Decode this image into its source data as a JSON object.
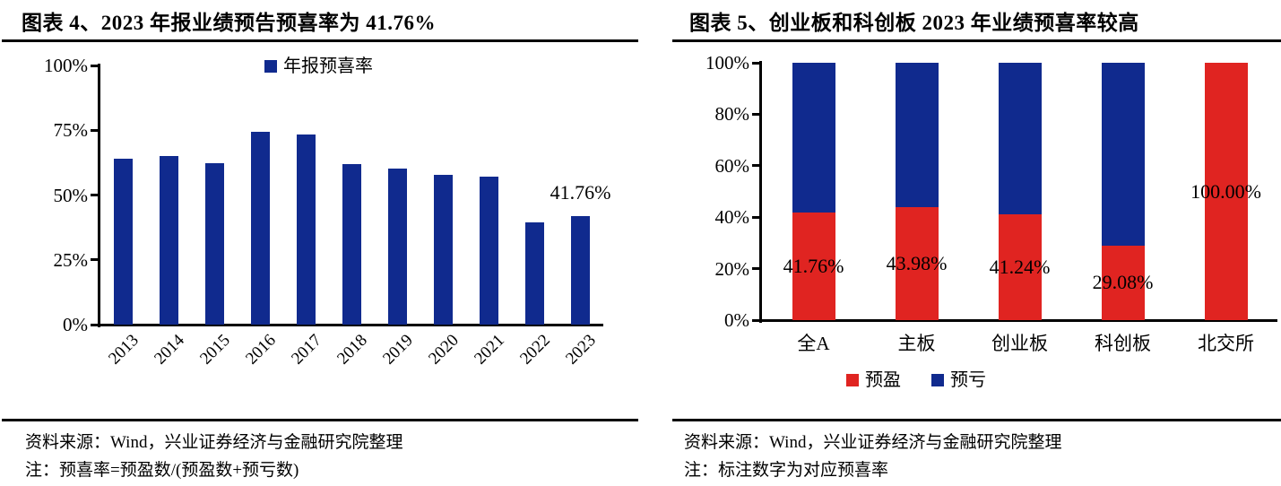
{
  "figure4": {
    "title": "图表 4、2023 年报业绩预告预喜率为 41.76%",
    "source": "资料来源：Wind，兴业证券经济与金融研究院整理",
    "note": "注：预喜率=预盈数/(预盈数+预亏数)"
  },
  "figure5": {
    "title": "图表 5、创业板和科创板 2023 年业绩预喜率较高",
    "source": "资料来源：Wind，兴业证券经济与金融研究院整理",
    "note": "注：标注数字为对应预喜率"
  },
  "colors": {
    "navy": "#102A8E",
    "red": "#E02421",
    "axis": "#000000",
    "text": "#000000"
  },
  "chart_data": [
    {
      "type": "bar",
      "title": "图表 4、2023 年报业绩预告预喜率为 41.76%",
      "categories": [
        "2013",
        "2014",
        "2015",
        "2016",
        "2017",
        "2018",
        "2019",
        "2020",
        "2021",
        "2022",
        "2023"
      ],
      "series": [
        {
          "name": "年报预喜率",
          "color": "#102A8E",
          "values": [
            63.9,
            65.0,
            62.3,
            74.5,
            73.4,
            62.0,
            60.2,
            57.8,
            57.0,
            39.5,
            41.76
          ]
        }
      ],
      "annotation": {
        "text": "41.76%",
        "category_index": 10
      },
      "xlabel": "",
      "ylabel": "",
      "ylim": [
        0,
        100
      ],
      "ytick_values": [
        0,
        25,
        50,
        75,
        100
      ],
      "ytick_labels": [
        "0%",
        "25%",
        "50%",
        "75%",
        "100%"
      ],
      "grid": false,
      "legend_position": "top"
    },
    {
      "type": "bar",
      "stacked": true,
      "title": "图表 5、创业板和科创板 2023 年业绩预喜率较高",
      "categories": [
        "全A",
        "主板",
        "创业板",
        "科创板",
        "北交所"
      ],
      "series": [
        {
          "name": "预盈",
          "color": "#E02421",
          "values": [
            41.76,
            43.98,
            41.24,
            29.08,
            100.0
          ]
        },
        {
          "name": "预亏",
          "color": "#102A8E",
          "values": [
            58.24,
            56.02,
            58.76,
            70.92,
            0.0
          ]
        }
      ],
      "data_labels": [
        "41.76%",
        "43.98%",
        "41.24%",
        "29.08%",
        "100.00%"
      ],
      "xlabel": "",
      "ylabel": "",
      "ylim": [
        0,
        100
      ],
      "ytick_values": [
        0,
        20,
        40,
        60,
        80,
        100
      ],
      "ytick_labels": [
        "0%",
        "20%",
        "40%",
        "60%",
        "80%",
        "100%"
      ],
      "grid": false,
      "legend_position": "bottom"
    }
  ]
}
